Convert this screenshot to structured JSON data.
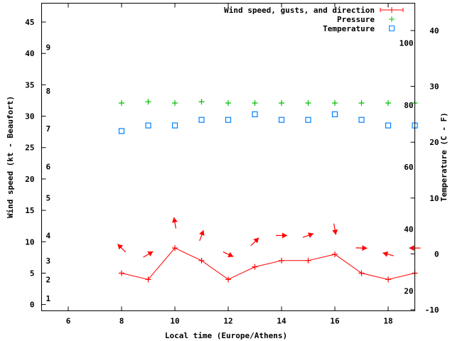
{
  "chart_data": {
    "type": "line",
    "title": "",
    "xlabel": "Local time (Europe/Athens)",
    "ylabel": "Wind speed (kt - Beaufort)",
    "y2label": "Temperature (C - F)",
    "xlim": [
      5,
      19
    ],
    "ylim": [
      -1,
      48
    ],
    "y2lim": [
      -10.2,
      44.9
    ],
    "xticks": [
      6,
      8,
      10,
      12,
      14,
      16,
      18
    ],
    "yticks": [
      0,
      5,
      10,
      15,
      20,
      25,
      30,
      35,
      40,
      45
    ],
    "y2ticks": [
      -10,
      0,
      10,
      20,
      30,
      40
    ],
    "beaufort_labels": [
      {
        "label": "1",
        "kt": 1
      },
      {
        "label": "2",
        "kt": 4
      },
      {
        "label": "3",
        "kt": 7
      },
      {
        "label": "4",
        "kt": 11
      },
      {
        "label": "5",
        "kt": 17
      },
      {
        "label": "6",
        "kt": 22
      },
      {
        "label": "7",
        "kt": 28
      },
      {
        "label": "8",
        "kt": 34
      },
      {
        "label": "9",
        "kt": 41
      }
    ],
    "fahrenheit_labels": [
      20,
      40,
      60,
      80,
      100
    ],
    "grid": false,
    "legend_position": "top-right",
    "x": [
      8,
      9,
      10,
      11,
      12,
      13,
      14,
      15,
      16,
      17,
      18,
      19
    ],
    "series": [
      {
        "name": "Wind speed, gusts, and direction",
        "axis": "y",
        "color": "#ff0000",
        "values": [
          5,
          4,
          9,
          7,
          4,
          6,
          7,
          7,
          8,
          5,
          4,
          5
        ],
        "gusts": [
          9,
          8,
          13,
          11,
          8,
          10,
          11,
          11,
          12,
          9,
          8,
          9
        ],
        "direction_deg": [
          315,
          60,
          350,
          20,
          115,
          45,
          90,
          70,
          170,
          92,
          285,
          270
        ]
      },
      {
        "name": "Pressure",
        "axis": "y",
        "color": "#00c000",
        "values": [
          32.1,
          32.3,
          32.1,
          32.3,
          32.1,
          32.1,
          32.1,
          32.1,
          32.1,
          32.1,
          32.1,
          32.1
        ]
      },
      {
        "name": "Temperature",
        "axis": "y2",
        "color": "#0080ff",
        "values": [
          22,
          23,
          23,
          24,
          24,
          25,
          24,
          24,
          25,
          24,
          23,
          23
        ]
      }
    ]
  }
}
